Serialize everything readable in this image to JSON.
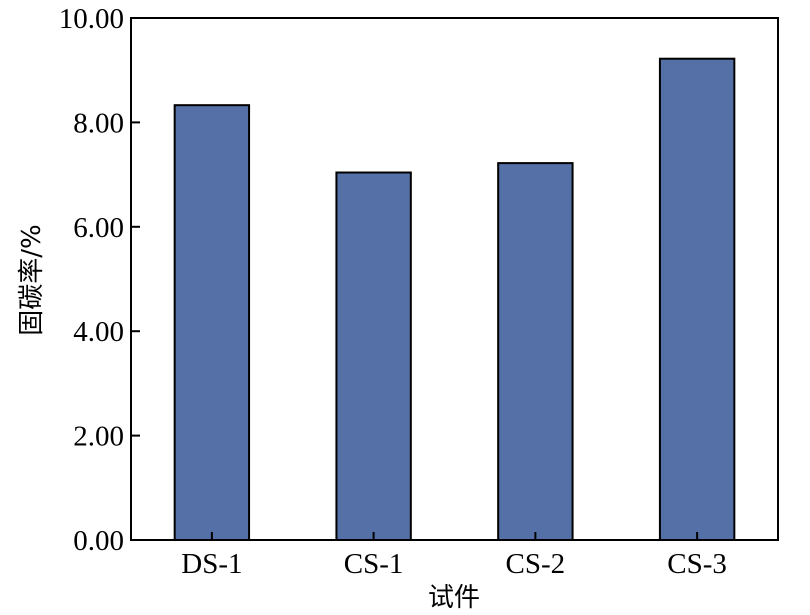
{
  "chart_data": {
    "type": "bar",
    "title": "",
    "xlabel": "试件",
    "ylabel": "固碳率/%",
    "categories": [
      "DS-1",
      "CS-1",
      "CS-2",
      "CS-3"
    ],
    "values": [
      8.33,
      7.04,
      7.22,
      9.22
    ],
    "ylim": [
      0,
      10
    ],
    "yticks": [
      "0.00",
      "2.00",
      "4.00",
      "6.00",
      "8.00",
      "10.00"
    ],
    "grid": false,
    "legend": "none",
    "bar_color": "#5570a6",
    "bar_edge_color": "#000000"
  }
}
